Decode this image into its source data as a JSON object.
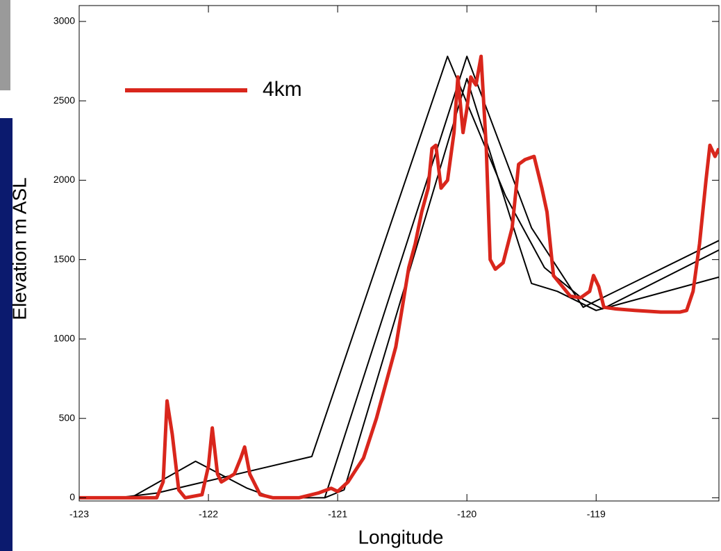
{
  "chart_data": {
    "type": "line",
    "x_label": "Longitude",
    "y_label": "Elevation m ASL",
    "xlim": [
      -123,
      -118.05
    ],
    "ylim": [
      -20,
      3100
    ],
    "xticks": [
      -123,
      -122,
      -121,
      -120,
      -119
    ],
    "yticks": [
      0,
      500,
      1000,
      1500,
      2000,
      2500,
      3000
    ],
    "legend": "upper left",
    "series": [
      {
        "color": "#000000",
        "x": [
          -123,
          -122.7,
          -122.4,
          -121.2,
          -120.15,
          -119.7,
          -119.4,
          -119.1,
          -118.95,
          -118.05
        ],
        "values": [
          0,
          0,
          30,
          260,
          2780,
          1900,
          1450,
          1250,
          1190,
          1560
        ]
      },
      {
        "color": "#000000",
        "x": [
          -122.6,
          -122.1,
          -121.7,
          -121.5,
          -121.1,
          -120.0,
          -119.5,
          -119.1,
          -118.05
        ],
        "values": [
          0,
          230,
          60,
          0,
          0,
          2780,
          1700,
          1200,
          1620
        ]
      },
      {
        "color": "#000000",
        "x": [
          -121.1,
          -120.95,
          -120.0,
          -119.6,
          -119.5,
          -119.3,
          -119.0,
          -118.05
        ],
        "values": [
          0,
          50,
          2640,
          1600,
          1350,
          1300,
          1180,
          1390
        ]
      },
      {
        "name": "4km",
        "color": "#d9261c",
        "x": [
          -123,
          -122.4,
          -122.35,
          -122.32,
          -122.28,
          -122.23,
          -122.18,
          -122.05,
          -122.0,
          -121.97,
          -121.93,
          -121.9,
          -121.8,
          -121.75,
          -121.72,
          -121.68,
          -121.6,
          -121.5,
          -121.3,
          -121.15,
          -121.05,
          -121.0,
          -120.92,
          -120.8,
          -120.7,
          -120.6,
          -120.55,
          -120.5,
          -120.45,
          -120.4,
          -120.35,
          -120.3,
          -120.27,
          -120.24,
          -120.2,
          -120.15,
          -120.1,
          -120.07,
          -120.03,
          -120.0,
          -119.97,
          -119.93,
          -119.89,
          -119.85,
          -119.82,
          -119.78,
          -119.72,
          -119.65,
          -119.6,
          -119.55,
          -119.48,
          -119.42,
          -119.38,
          -119.33,
          -119.28,
          -119.2,
          -119.12,
          -119.05,
          -119.02,
          -118.98,
          -118.94,
          -118.85,
          -118.7,
          -118.5,
          -118.35,
          -118.3,
          -118.25,
          -118.2,
          -118.15,
          -118.12,
          -118.08,
          -118.05
        ],
        "values": [
          0,
          0,
          100,
          610,
          400,
          50,
          0,
          20,
          200,
          440,
          150,
          100,
          150,
          250,
          320,
          150,
          20,
          0,
          0,
          30,
          60,
          40,
          100,
          250,
          500,
          800,
          950,
          1200,
          1450,
          1600,
          1800,
          1950,
          2200,
          2220,
          1950,
          2000,
          2300,
          2650,
          2300,
          2450,
          2650,
          2600,
          2780,
          2200,
          1500,
          1440,
          1480,
          1700,
          2100,
          2130,
          2150,
          1950,
          1800,
          1400,
          1350,
          1270,
          1260,
          1300,
          1400,
          1330,
          1200,
          1190,
          1180,
          1170,
          1170,
          1180,
          1300,
          1600,
          2000,
          2220,
          2150,
          2200
        ]
      }
    ]
  }
}
